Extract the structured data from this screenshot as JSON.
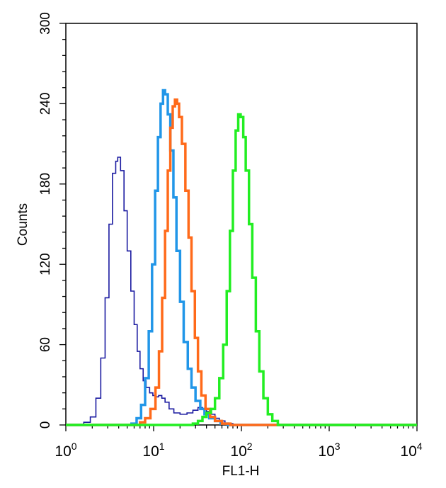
{
  "chart_data": {
    "type": "line",
    "xlabel": "FL1-H",
    "ylabel": "Counts",
    "x_scale": "log",
    "xlim": [
      1,
      10000
    ],
    "ylim": [
      0,
      300
    ],
    "grid": false,
    "x_ticks": [
      {
        "value": 1,
        "base": "10",
        "exp": "0"
      },
      {
        "value": 10,
        "base": "10",
        "exp": "1"
      },
      {
        "value": 100,
        "base": "10",
        "exp": "2"
      },
      {
        "value": 1000,
        "base": "10",
        "exp": "3"
      },
      {
        "value": 10000,
        "base": "10",
        "exp": "4"
      }
    ],
    "y_ticks": [
      "0",
      "60",
      "120",
      "180",
      "240",
      "300"
    ],
    "series": [
      {
        "color": "#1a1aa0",
        "stroke": 1.6,
        "points": [
          [
            1.0,
            0
          ],
          [
            1.4,
            0
          ],
          [
            1.6,
            2
          ],
          [
            1.9,
            6
          ],
          [
            2.2,
            20
          ],
          [
            2.5,
            50
          ],
          [
            2.8,
            95
          ],
          [
            3.1,
            150
          ],
          [
            3.4,
            188
          ],
          [
            3.7,
            197
          ],
          [
            3.9,
            200
          ],
          [
            4.2,
            190
          ],
          [
            4.6,
            160
          ],
          [
            5.0,
            130
          ],
          [
            5.5,
            100
          ],
          [
            6.0,
            75
          ],
          [
            6.5,
            55
          ],
          [
            7.0,
            42
          ],
          [
            7.6,
            33
          ],
          [
            8.2,
            28
          ],
          [
            9.0,
            24
          ],
          [
            9.8,
            22
          ],
          [
            10.6,
            21
          ],
          [
            11.4,
            22
          ],
          [
            12.4,
            20
          ],
          [
            13.5,
            17
          ],
          [
            15,
            12
          ],
          [
            17,
            9
          ],
          [
            20,
            8
          ],
          [
            24,
            9
          ],
          [
            28,
            11
          ],
          [
            32,
            13
          ],
          [
            36,
            12
          ],
          [
            40,
            10
          ],
          [
            45,
            8
          ],
          [
            50,
            5
          ],
          [
            56,
            3
          ],
          [
            65,
            1
          ],
          [
            80,
            0
          ],
          [
            10000,
            0
          ]
        ]
      },
      {
        "color": "#2196e8",
        "stroke": 3.5,
        "points": [
          [
            1.0,
            0
          ],
          [
            5.0,
            0
          ],
          [
            5.6,
            1
          ],
          [
            6.4,
            5
          ],
          [
            7.2,
            15
          ],
          [
            8.0,
            35
          ],
          [
            8.8,
            70
          ],
          [
            9.6,
            120
          ],
          [
            10.4,
            175
          ],
          [
            11.2,
            215
          ],
          [
            12.0,
            240
          ],
          [
            12.8,
            250
          ],
          [
            13.5,
            247
          ],
          [
            14.5,
            232
          ],
          [
            15.5,
            205
          ],
          [
            16.8,
            170
          ],
          [
            18.2,
            130
          ],
          [
            20,
            92
          ],
          [
            22,
            62
          ],
          [
            24.5,
            42
          ],
          [
            27,
            28
          ],
          [
            30,
            18
          ],
          [
            34,
            12
          ],
          [
            38,
            8
          ],
          [
            43,
            5
          ],
          [
            50,
            3
          ],
          [
            58,
            1
          ],
          [
            70,
            0
          ],
          [
            10000,
            0
          ]
        ]
      },
      {
        "color": "#ff6a1a",
        "stroke": 3.5,
        "points": [
          [
            1.0,
            0
          ],
          [
            6.0,
            0
          ],
          [
            7.0,
            2
          ],
          [
            8.0,
            5
          ],
          [
            9.2,
            12
          ],
          [
            10.5,
            28
          ],
          [
            11.5,
            55
          ],
          [
            12.5,
            95
          ],
          [
            13.5,
            145
          ],
          [
            14.5,
            190
          ],
          [
            15.5,
            222
          ],
          [
            16.5,
            238
          ],
          [
            17.5,
            243
          ],
          [
            18.5,
            240
          ],
          [
            19.5,
            230
          ],
          [
            21,
            210
          ],
          [
            23,
            175
          ],
          [
            25,
            140
          ],
          [
            27,
            100
          ],
          [
            29.5,
            65
          ],
          [
            32,
            40
          ],
          [
            35,
            22
          ],
          [
            39,
            12
          ],
          [
            44,
            6
          ],
          [
            50,
            3
          ],
          [
            60,
            1
          ],
          [
            75,
            0
          ],
          [
            10000,
            0
          ]
        ]
      },
      {
        "color": "#22ee22",
        "stroke": 3.5,
        "points": [
          [
            1.0,
            0
          ],
          [
            25,
            0
          ],
          [
            28,
            1
          ],
          [
            32,
            3
          ],
          [
            36,
            6
          ],
          [
            40,
            9
          ],
          [
            45,
            12
          ],
          [
            50,
            20
          ],
          [
            56,
            35
          ],
          [
            62,
            60
          ],
          [
            68,
            100
          ],
          [
            74,
            145
          ],
          [
            80,
            190
          ],
          [
            86,
            220
          ],
          [
            92,
            232
          ],
          [
            98,
            230
          ],
          [
            105,
            215
          ],
          [
            112,
            190
          ],
          [
            122,
            150
          ],
          [
            133,
            110
          ],
          [
            146,
            70
          ],
          [
            160,
            40
          ],
          [
            178,
            20
          ],
          [
            200,
            8
          ],
          [
            225,
            3
          ],
          [
            260,
            0
          ],
          [
            10000,
            0
          ]
        ]
      }
    ]
  }
}
